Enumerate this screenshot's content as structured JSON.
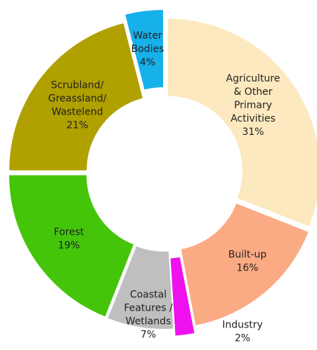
{
  "chart_data": {
    "type": "donut",
    "categories": [
      [
        "Agriculture",
        "& Other",
        "Primary",
        "Activities"
      ],
      [
        "Built-up"
      ],
      [
        "Industry"
      ],
      [
        "Coastal",
        "Features /",
        "Wetlands"
      ],
      [
        "Forest"
      ],
      [
        "Scrubland/",
        "Greassland/",
        "Wastelend"
      ],
      [
        "Water",
        "Bodies"
      ]
    ],
    "values": [
      31,
      16,
      2,
      7,
      19,
      21,
      4
    ],
    "value_labels": [
      "31%",
      "16%",
      "2%",
      "7%",
      "19%",
      "21%",
      "4%"
    ],
    "colors": [
      "#fde9bf",
      "#fbab84",
      "#ee11ee",
      "#bfbfbf",
      "#44c50a",
      "#b0a000",
      "#16b0ea"
    ]
  }
}
